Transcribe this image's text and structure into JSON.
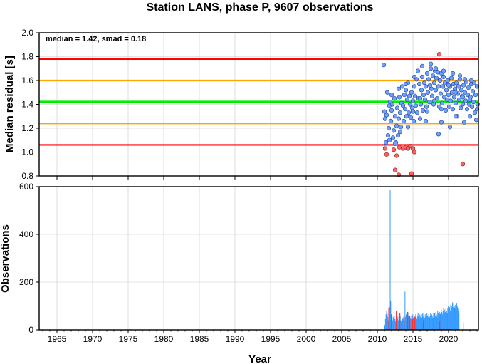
{
  "title": "Station LANS, phase P, 9607 observations",
  "colors": {
    "median_line": "#00ee00",
    "smad_line": "#ffa500",
    "limit_line": "#ff0000",
    "point_normal": "#6fa0ff",
    "point_outlier": "#ff6060",
    "bar_normal": "#3399ff",
    "bar_outlier": "#ff3333",
    "grid": "#c8c8c8"
  },
  "chart_data": [
    {
      "type": "scatter",
      "ylabel": "Median residual [s]",
      "annotation": "median = 1.42, smad = 0.18",
      "xlim": [
        1962.5,
        2024.2
      ],
      "ylim": [
        0.8,
        2.0
      ],
      "y_ticks": [
        "0.8",
        "1.0",
        "1.2",
        "1.4",
        "1.6",
        "1.8",
        "2.0"
      ],
      "grid": true,
      "hlines": [
        {
          "y": 1.42,
          "role": "median",
          "color": "#00ee00"
        },
        {
          "y": 1.6,
          "role": "median+smad",
          "color": "#ffa500"
        },
        {
          "y": 1.24,
          "role": "median-smad",
          "color": "#ffa500"
        },
        {
          "y": 1.78,
          "role": "upper-limit",
          "color": "#ff0000"
        },
        {
          "y": 1.06,
          "role": "lower-limit",
          "color": "#ff0000"
        }
      ],
      "points": [
        [
          2010.9,
          1.73
        ],
        [
          2011.0,
          1.34
        ],
        [
          2011.1,
          1.28
        ],
        [
          2011.2,
          1.08
        ],
        [
          2011.3,
          1.31
        ],
        [
          2011.4,
          1.5
        ],
        [
          2011.5,
          1.14
        ],
        [
          2011.6,
          1.2
        ],
        [
          2011.7,
          1.39
        ],
        [
          2011.8,
          1.42
        ],
        [
          2011.9,
          1.26
        ],
        [
          2012.0,
          1.35
        ],
        [
          2012.1,
          1.4
        ],
        [
          2012.2,
          1.12
        ],
        [
          2012.3,
          1.18
        ],
        [
          2012.4,
          1.45
        ],
        [
          2012.5,
          1.3
        ],
        [
          2012.6,
          1.08
        ],
        [
          2012.7,
          1.22
        ],
        [
          2012.8,
          1.37
        ],
        [
          2012.9,
          1.14
        ],
        [
          2013.0,
          1.28
        ],
        [
          2013.1,
          1.46
        ],
        [
          2013.2,
          1.33
        ],
        [
          2013.3,
          1.21
        ],
        [
          2013.4,
          1.41
        ],
        [
          2013.5,
          1.55
        ],
        [
          2013.6,
          1.39
        ],
        [
          2013.7,
          1.26
        ],
        [
          2013.8,
          1.48
        ],
        [
          2013.9,
          1.36
        ],
        [
          2014.0,
          1.52
        ],
        [
          2014.1,
          1.3
        ],
        [
          2014.2,
          1.44
        ],
        [
          2014.3,
          1.58
        ],
        [
          2014.4,
          1.33
        ],
        [
          2014.5,
          1.47
        ],
        [
          2014.6,
          1.4
        ],
        [
          2014.7,
          1.29
        ],
        [
          2014.8,
          1.5
        ],
        [
          2014.9,
          1.37
        ],
        [
          2015.0,
          1.43
        ],
        [
          2015.1,
          1.26
        ],
        [
          2015.2,
          1.55
        ],
        [
          2015.3,
          1.47
        ],
        [
          2015.4,
          1.39
        ],
        [
          2015.5,
          1.61
        ],
        [
          2015.6,
          1.33
        ],
        [
          2015.7,
          1.68
        ],
        [
          2015.8,
          1.45
        ],
        [
          2015.9,
          1.57
        ],
        [
          2016.0,
          1.28
        ],
        [
          2016.1,
          1.4
        ],
        [
          2016.2,
          1.52
        ],
        [
          2016.3,
          1.63
        ],
        [
          2016.4,
          1.35
        ],
        [
          2016.5,
          1.48
        ],
        [
          2016.6,
          1.58
        ],
        [
          2016.7,
          1.44
        ],
        [
          2016.8,
          1.55
        ],
        [
          2016.9,
          1.38
        ],
        [
          2017.0,
          1.66
        ],
        [
          2017.1,
          1.5
        ],
        [
          2017.2,
          1.61
        ],
        [
          2017.3,
          1.42
        ],
        [
          2017.4,
          1.56
        ],
        [
          2017.5,
          1.7
        ],
        [
          2017.6,
          1.53
        ],
        [
          2017.7,
          1.47
        ],
        [
          2017.8,
          1.64
        ],
        [
          2017.9,
          1.4
        ],
        [
          2018.0,
          1.58
        ],
        [
          2018.1,
          1.68
        ],
        [
          2018.2,
          1.52
        ],
        [
          2018.3,
          1.62
        ],
        [
          2018.4,
          1.45
        ],
        [
          2018.5,
          1.67
        ],
        [
          2018.6,
          1.55
        ],
        [
          2018.7,
          1.38
        ],
        [
          2018.8,
          1.6
        ],
        [
          2018.9,
          1.49
        ],
        [
          2019.0,
          1.66
        ],
        [
          2019.1,
          1.41
        ],
        [
          2019.2,
          1.55
        ],
        [
          2019.3,
          1.63
        ],
        [
          2019.4,
          1.46
        ],
        [
          2019.5,
          1.58
        ],
        [
          2019.6,
          1.35
        ],
        [
          2019.7,
          1.52
        ],
        [
          2019.8,
          1.44
        ],
        [
          2019.9,
          1.6
        ],
        [
          2020.0,
          1.48
        ],
        [
          2020.1,
          1.38
        ],
        [
          2020.2,
          1.55
        ],
        [
          2020.3,
          1.43
        ],
        [
          2020.4,
          1.62
        ],
        [
          2020.5,
          1.5
        ],
        [
          2020.6,
          1.36
        ],
        [
          2020.7,
          1.57
        ],
        [
          2020.8,
          1.46
        ],
        [
          2020.9,
          1.53
        ],
        [
          2021.0,
          1.41
        ],
        [
          2021.1,
          1.58
        ],
        [
          2021.2,
          1.3
        ],
        [
          2021.3,
          1.49
        ],
        [
          2021.4,
          1.55
        ],
        [
          2021.5,
          1.44
        ],
        [
          2021.6,
          1.61
        ],
        [
          2021.7,
          1.37
        ],
        [
          2021.8,
          1.52
        ],
        [
          2021.9,
          1.47
        ],
        [
          2022.0,
          1.4
        ],
        [
          2022.1,
          1.56
        ],
        [
          2022.2,
          1.25
        ],
        [
          2022.3,
          1.5
        ],
        [
          2022.4,
          1.43
        ],
        [
          2022.5,
          1.59
        ],
        [
          2022.6,
          1.36
        ],
        [
          2022.7,
          1.48
        ],
        [
          2022.8,
          1.54
        ],
        [
          2022.9,
          1.4
        ],
        [
          2023.0,
          1.3
        ],
        [
          2023.1,
          1.46
        ],
        [
          2023.2,
          1.57
        ],
        [
          2023.3,
          1.38
        ],
        [
          2023.4,
          1.51
        ],
        [
          2023.5,
          1.42
        ],
        [
          2023.6,
          1.58
        ],
        [
          2023.7,
          1.33
        ],
        [
          2023.8,
          1.48
        ],
        [
          2023.9,
          1.27
        ],
        [
          2024.0,
          1.55
        ],
        [
          2024.1,
          1.4
        ],
        [
          2017.5,
          1.74
        ],
        [
          2018.2,
          1.7
        ],
        [
          2019.3,
          1.68
        ],
        [
          2016.3,
          1.72
        ],
        [
          2020.6,
          1.66
        ],
        [
          2015.2,
          1.63
        ],
        [
          2021.6,
          1.64
        ],
        [
          2022.3,
          1.61
        ],
        [
          2023.2,
          1.6
        ],
        [
          2018.6,
          1.15
        ],
        [
          2020.2,
          1.21
        ],
        [
          2016.8,
          1.26
        ],
        [
          2019.0,
          1.25
        ],
        [
          2021.0,
          1.3
        ],
        [
          2013.2,
          1.17
        ],
        [
          2014.3,
          1.21
        ],
        [
          2012.5,
          1.07
        ],
        [
          2011.7,
          1.1
        ],
        [
          2012.0,
          1.48
        ],
        [
          2013.0,
          1.53
        ],
        [
          2014.0,
          1.57
        ],
        [
          2015.0,
          1.34
        ],
        [
          2016.0,
          1.45
        ],
        [
          2017.0,
          1.34
        ],
        [
          2018.0,
          1.43
        ],
        [
          2019.0,
          1.36
        ],
        [
          2020.0,
          1.56
        ],
        [
          2021.0,
          1.5
        ],
        [
          2022.0,
          1.46
        ],
        [
          2023.0,
          1.44
        ],
        [
          2024.0,
          1.36
        ]
      ],
      "outliers": [
        [
          2011.1,
          1.03
        ],
        [
          2011.3,
          0.98
        ],
        [
          2012.3,
          1.02
        ],
        [
          2012.5,
          0.85
        ],
        [
          2012.7,
          0.97
        ],
        [
          2013.0,
          0.81
        ],
        [
          2013.1,
          1.04
        ],
        [
          2013.6,
          1.03
        ],
        [
          2014.0,
          1.04
        ],
        [
          2014.3,
          1.03
        ],
        [
          2014.6,
          1.05
        ],
        [
          2014.8,
          0.82
        ],
        [
          2015.0,
          1.03
        ],
        [
          2015.2,
          1.0
        ],
        [
          2018.7,
          1.82
        ],
        [
          2022.0,
          0.9
        ]
      ]
    },
    {
      "type": "bar",
      "ylabel": "Observations",
      "xlabel": "Year",
      "xlim": [
        1962.5,
        2024.2
      ],
      "ylim": [
        0,
        600
      ],
      "y_ticks": [
        "0",
        "200",
        "400",
        "600"
      ],
      "x_ticks": [
        "1965",
        "1970",
        "1975",
        "1980",
        "1985",
        "1990",
        "1995",
        "2000",
        "2005",
        "2010",
        "2015",
        "2020"
      ],
      "grid": true,
      "bar_start": 2011.0,
      "bar_width": 0.0834,
      "counts": [
        20,
        45,
        65,
        80,
        70,
        55,
        40,
        35,
        95,
        585,
        120,
        60,
        45,
        40,
        55,
        50,
        60,
        45,
        35,
        50,
        40,
        45,
        55,
        40,
        50,
        45,
        60,
        40,
        35,
        55,
        45,
        50,
        60,
        40,
        160,
        55,
        65,
        50,
        45,
        70,
        60,
        55,
        40,
        50,
        45,
        60,
        55,
        65,
        50,
        60,
        45,
        55,
        65,
        50,
        45,
        60,
        70,
        55,
        50,
        65,
        55,
        60,
        50,
        65,
        70,
        55,
        60,
        50,
        65,
        55,
        60,
        70,
        60,
        55,
        65,
        50,
        60,
        70,
        55,
        65,
        60,
        50,
        70,
        65,
        70,
        60,
        75,
        65,
        55,
        80,
        70,
        60,
        75,
        65,
        70,
        85,
        75,
        65,
        80,
        90,
        70,
        85,
        75,
        95,
        80,
        70,
        90,
        100,
        85,
        95,
        80,
        105,
        90,
        100,
        115,
        95,
        110,
        100,
        90,
        105,
        95,
        110,
        100,
        90,
        80,
        70
      ],
      "outlier_months": [
        [
          2011.55,
          90
        ],
        [
          2011.9,
          65
        ],
        [
          2012.6,
          80
        ],
        [
          2013.1,
          70
        ],
        [
          2013.7,
          55
        ],
        [
          2014.2,
          75
        ],
        [
          2014.5,
          60
        ],
        [
          2014.9,
          45
        ],
        [
          2015.2,
          55
        ],
        [
          2016.4,
          40
        ],
        [
          2018.7,
          35
        ],
        [
          2022.0,
          30
        ]
      ]
    }
  ]
}
